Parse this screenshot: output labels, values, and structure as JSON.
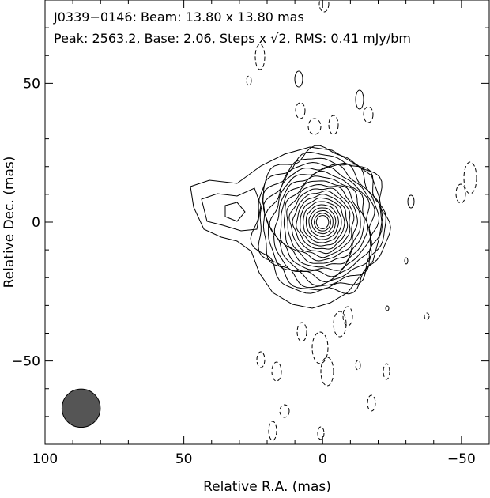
{
  "chart_data": {
    "type": "contour",
    "header": {
      "line1": "J0339−0146: Beam: 13.80 x 13.80 mas",
      "line2_before_sqrt": "Peak: 2563.2, Base: 2.06, Steps x ",
      "line2_sqrt_arg": "2",
      "line2_after_sqrt": ", RMS: 0.41 mJy/bm"
    },
    "xlabel": "Relative R.A. (mas)",
    "ylabel": "Relative Dec. (mas)",
    "xlim": [
      100,
      -60
    ],
    "ylim": [
      -80,
      80
    ],
    "x_ticks": [
      100,
      50,
      0,
      -50
    ],
    "x_tick_labels": [
      "100",
      "50",
      "0",
      "−50"
    ],
    "y_ticks": [
      50,
      0,
      -50
    ],
    "y_tick_labels": [
      "50",
      "0",
      "−50"
    ],
    "beam": {
      "x": 87,
      "y": -67,
      "diameter": 13.8,
      "color": "#555555"
    },
    "core": {
      "x": 0,
      "y": 0
    },
    "peak": 2563.2,
    "base": 2.06,
    "step_factor": "sqrt(2)",
    "rms_mJy_per_beam": 0.41,
    "contour_levels_count": 20,
    "negative_contours": "dashed",
    "grid": false
  }
}
